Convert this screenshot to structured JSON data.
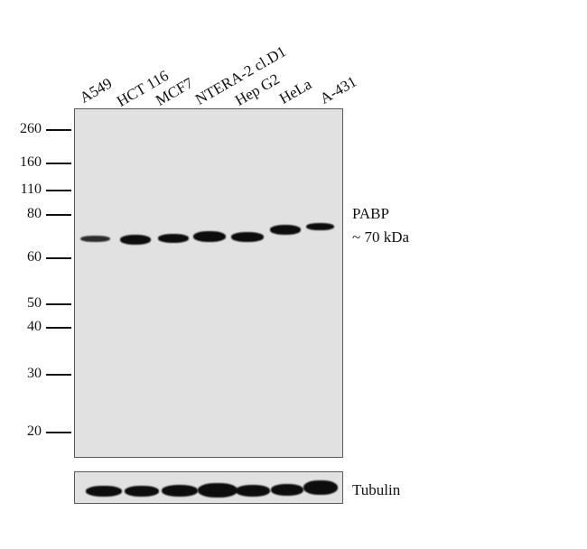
{
  "lanes": [
    "A549",
    "HCT 116",
    "MCF7",
    "NTERA-2 cl.D1",
    "Hep G2",
    "HeLa",
    "A-431"
  ],
  "mw_markers": [
    "260",
    "160",
    "110",
    "80",
    "60",
    "50",
    "40",
    "30",
    "20"
  ],
  "target": {
    "name": "PABP",
    "size": "~ 70 kDa"
  },
  "loading_control": "Tubulin"
}
